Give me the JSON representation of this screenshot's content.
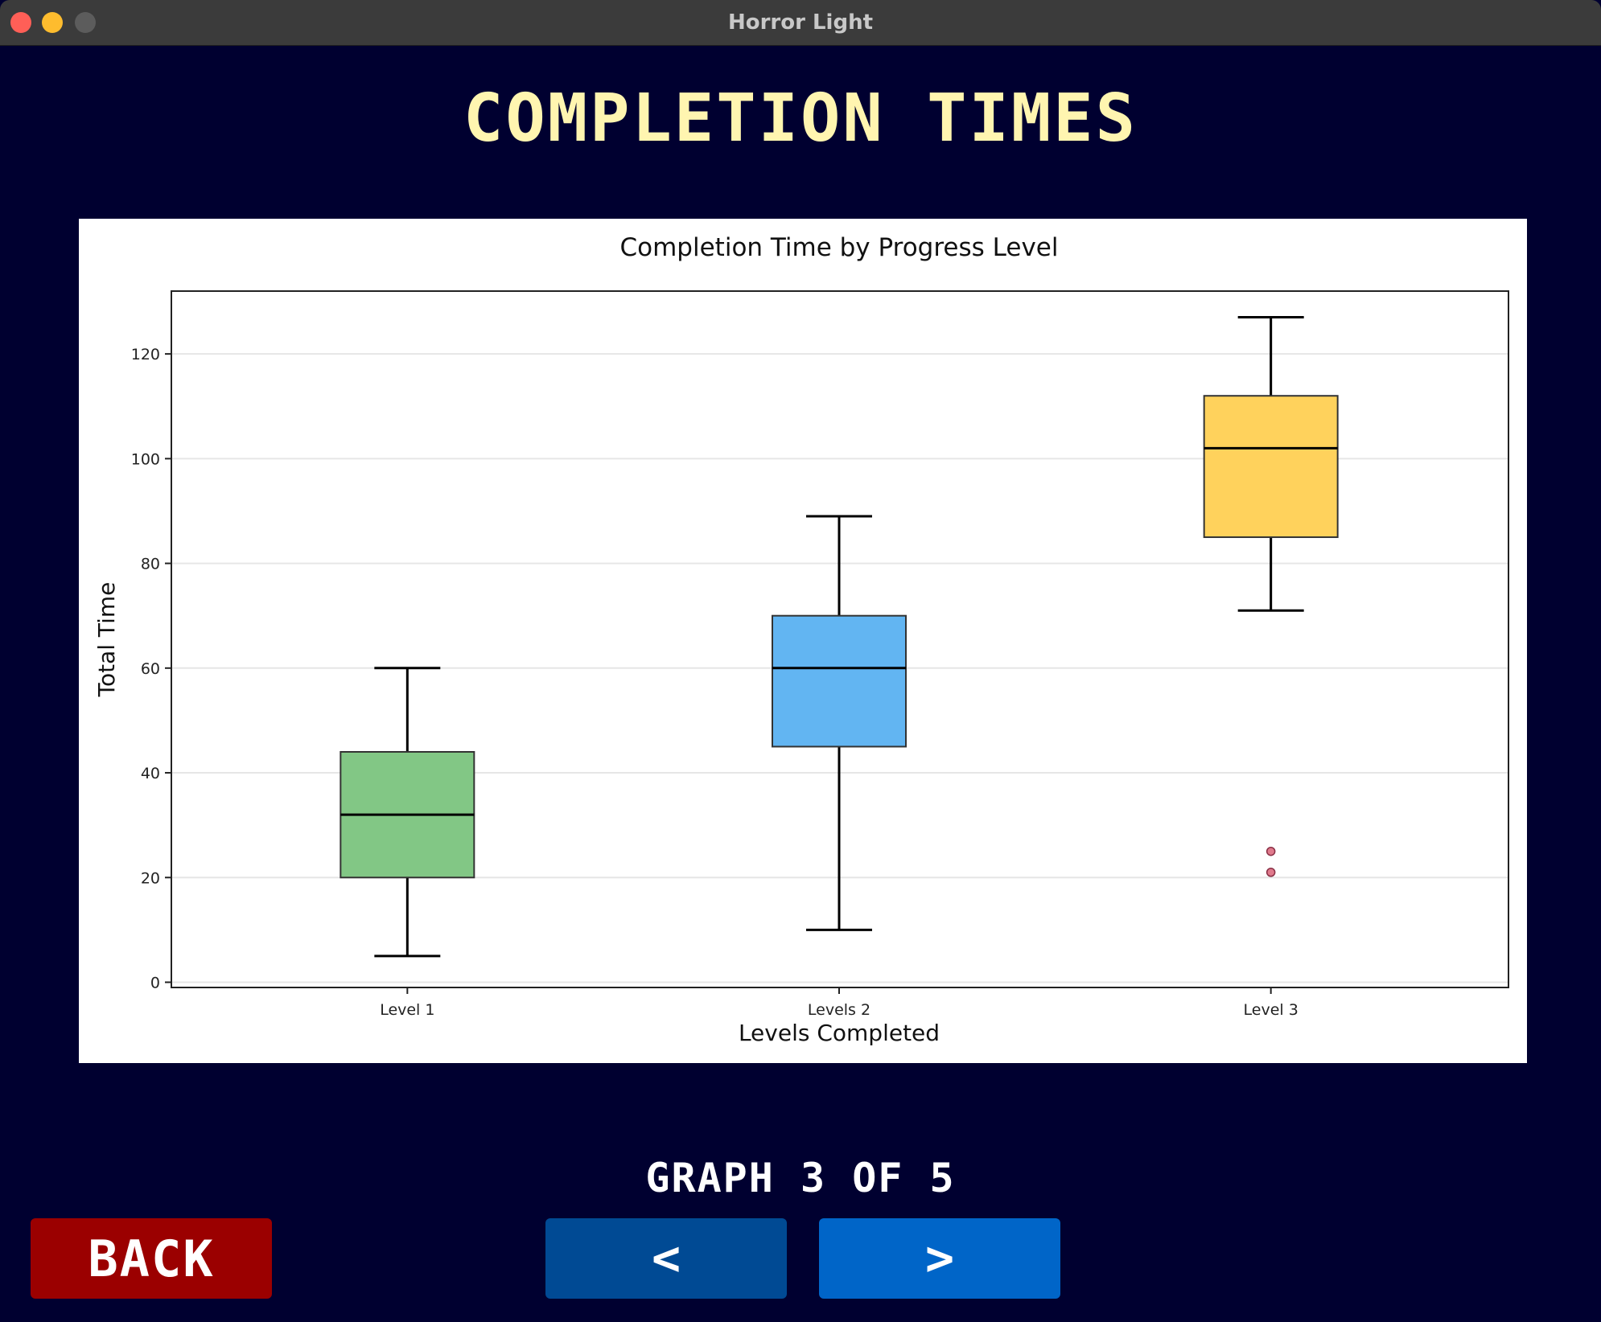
{
  "window": {
    "title": "Horror Light"
  },
  "heading": "COMPLETION TIMES",
  "chart_data": {
    "type": "box",
    "title": "Completion Time by Progress Level",
    "xlabel": "Levels Completed",
    "ylabel": "Total Time",
    "categories": [
      "Level 1",
      "Levels 2",
      "Level 3"
    ],
    "ylim": [
      -1,
      132
    ],
    "yticks": [
      0,
      20,
      40,
      60,
      80,
      100,
      120
    ],
    "grid": true,
    "boxes": [
      {
        "whisker_low": 5,
        "q1": 20,
        "median": 32,
        "q3": 44,
        "whisker_high": 60,
        "color": "#82c785",
        "outliers": []
      },
      {
        "whisker_low": 10,
        "q1": 45,
        "median": 60,
        "q3": 70,
        "whisker_high": 89,
        "color": "#62b5f2",
        "outliers": []
      },
      {
        "whisker_low": 71,
        "q1": 85,
        "median": 102,
        "q3": 112,
        "whisker_high": 127,
        "color": "#ffd25c",
        "outliers": [
          25,
          21
        ]
      }
    ],
    "outlier_color": "#e07a8c"
  },
  "pager": {
    "label": "GRAPH 3 OF 5"
  },
  "buttons": {
    "back": "BACK",
    "prev": "<",
    "next": ">"
  },
  "colors": {
    "background": "#000030",
    "heading": "#fff5b0",
    "back": "#9b0000",
    "prev": "#004a94",
    "next": "#0065c8"
  }
}
